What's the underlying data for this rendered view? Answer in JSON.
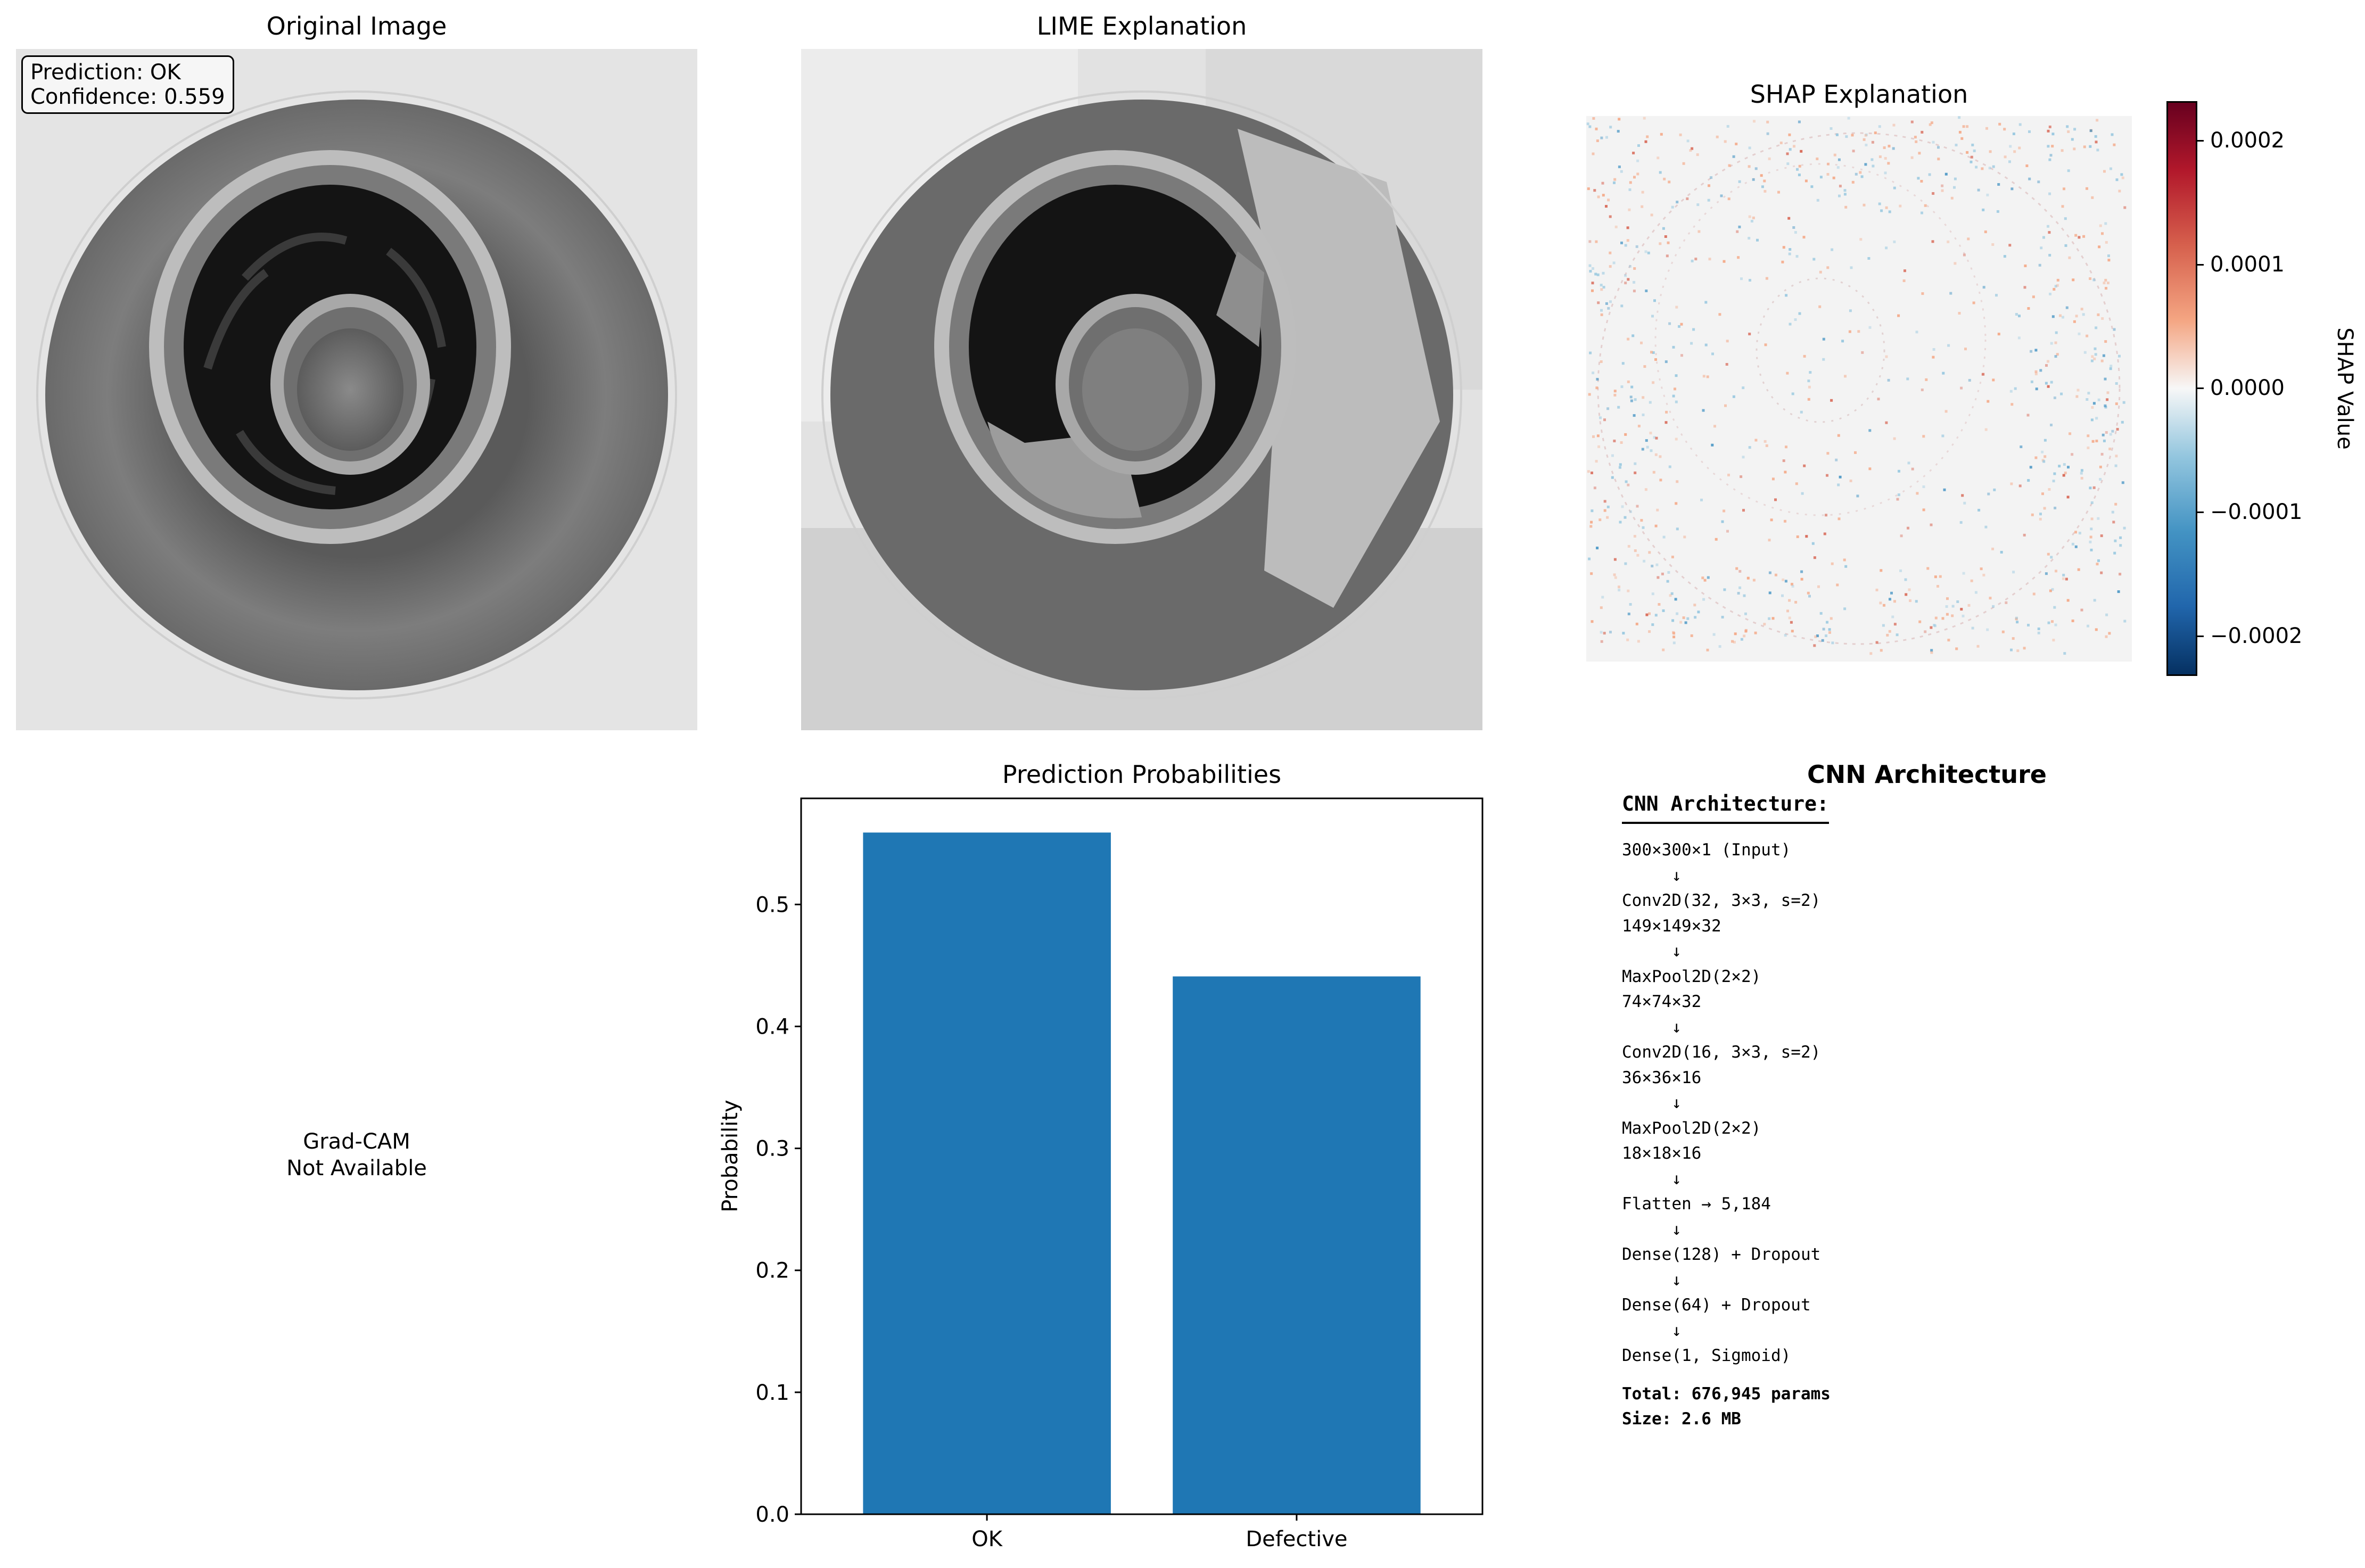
{
  "original": {
    "title": "Original Image",
    "prediction_text": "Prediction: OK",
    "confidence_text": "Confidence: 0.559"
  },
  "lime": {
    "title": "LIME Explanation"
  },
  "shap": {
    "title": "SHAP Explanation",
    "colorbar_label": "SHAP Value",
    "colorbar_ticks": [
      "0.0002",
      "0.0001",
      "0.0000",
      "−0.0001",
      "−0.0002"
    ],
    "colormap": "RdBu_r",
    "colors": {
      "high": "#67001f",
      "mid": "#f7f7f7",
      "low": "#053061"
    }
  },
  "gradcam": {
    "line1": "Grad-CAM",
    "line2": "Not Available"
  },
  "chart_data": {
    "type": "bar",
    "title": "Prediction Probabilities",
    "categories": [
      "OK",
      "Defective"
    ],
    "values": [
      0.559,
      0.441
    ],
    "xlabel": "",
    "ylabel": "Probability",
    "ylim": [
      0,
      0.587
    ],
    "yticks": [
      0.0,
      0.1,
      0.2,
      0.3,
      0.4,
      0.5
    ],
    "ytick_labels": [
      "0.0",
      "0.1",
      "0.2",
      "0.3",
      "0.4",
      "0.5"
    ],
    "bar_color": "#1f77b4",
    "grid": false
  },
  "architecture": {
    "title": "CNN Architecture",
    "heading": "CNN Architecture:",
    "lines": [
      "300×300×1 (Input)",
      "     ↓",
      "Conv2D(32, 3×3, s=2)",
      "149×149×32",
      "     ↓",
      "MaxPool2D(2×2)",
      "74×74×32",
      "     ↓",
      "Conv2D(16, 3×3, s=2)",
      "36×36×16",
      "     ↓",
      "MaxPool2D(2×2)",
      "18×18×16",
      "     ↓",
      "Flatten → 5,184",
      "     ↓",
      "Dense(128) + Dropout",
      "     ↓",
      "Dense(64) + Dropout",
      "     ↓",
      "Dense(1, Sigmoid)"
    ],
    "total": "Total: 676,945 params",
    "size": "Size: 2.6 MB"
  }
}
